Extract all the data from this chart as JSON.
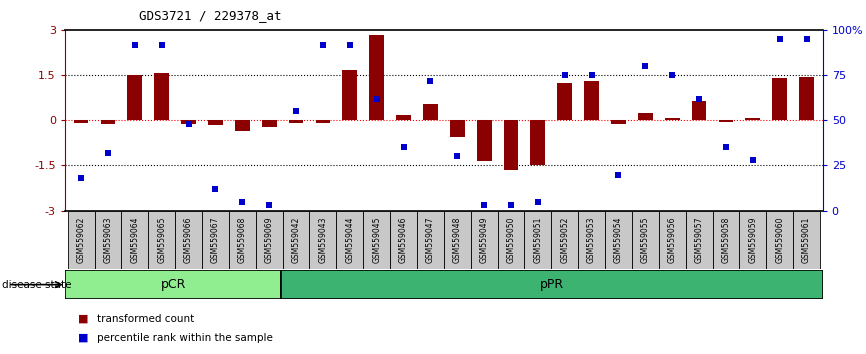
{
  "title": "GDS3721 / 229378_at",
  "samples": [
    "GSM559062",
    "GSM559063",
    "GSM559064",
    "GSM559065",
    "GSM559066",
    "GSM559067",
    "GSM559068",
    "GSM559069",
    "GSM559042",
    "GSM559043",
    "GSM559044",
    "GSM559045",
    "GSM559046",
    "GSM559047",
    "GSM559048",
    "GSM559049",
    "GSM559050",
    "GSM559051",
    "GSM559052",
    "GSM559053",
    "GSM559054",
    "GSM559055",
    "GSM559056",
    "GSM559057",
    "GSM559058",
    "GSM559059",
    "GSM559060",
    "GSM559061"
  ],
  "bar_values": [
    -0.08,
    -0.12,
    1.52,
    1.58,
    -0.12,
    -0.15,
    -0.35,
    -0.22,
    -0.08,
    -0.1,
    1.68,
    2.85,
    0.18,
    0.55,
    -0.55,
    -1.35,
    -1.65,
    -1.5,
    1.25,
    1.3,
    -0.12,
    0.25,
    0.08,
    0.65,
    -0.05,
    0.08,
    1.42,
    1.45
  ],
  "blue_values": [
    18,
    32,
    92,
    92,
    48,
    12,
    5,
    3,
    55,
    92,
    92,
    62,
    35,
    72,
    30,
    3,
    3,
    5,
    75,
    75,
    20,
    80,
    75,
    62,
    35,
    28,
    95,
    95
  ],
  "pCR_count": 8,
  "pPR_count": 20,
  "bar_color": "#8B0000",
  "blue_color": "#0000CD",
  "ylim": [
    -3,
    3
  ],
  "right_ylim": [
    0,
    100
  ],
  "yticks_left": [
    -3,
    -1.5,
    0,
    1.5,
    3
  ],
  "yticks_right": [
    0,
    25,
    50,
    75,
    100
  ],
  "hlines": [
    0,
    1.5,
    -1.5
  ],
  "pCR_color": "#90EE90",
  "pPR_color": "#3CB371",
  "bar_color_legend": "#8B0000",
  "blue_color_legend": "#0000CD",
  "background_color": "#ffffff"
}
